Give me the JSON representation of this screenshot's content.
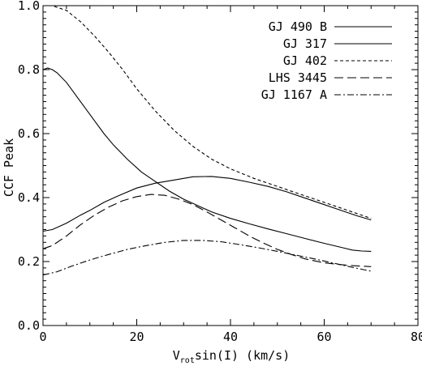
{
  "chart_data": {
    "type": "line",
    "title": "",
    "xlabel_main": "V",
    "xlabel_sub": "rot",
    "xlabel_rest": "sin(I) (km/s)",
    "ylabel": "CCF Peak",
    "xlim": [
      0,
      80
    ],
    "ylim": [
      0.0,
      1.0
    ],
    "xticks": [
      "0",
      "20",
      "40",
      "60",
      "80"
    ],
    "yticks": [
      "0.0",
      "0.2",
      "0.4",
      "0.6",
      "0.8",
      "1.0"
    ],
    "grid": false,
    "legend_position": "top-right",
    "series": [
      {
        "name": "GJ 490 B",
        "dash": "solid",
        "x": [
          0,
          2,
          5,
          8,
          10,
          13,
          16,
          20,
          24,
          28,
          32,
          36,
          40,
          44,
          48,
          52,
          56,
          60,
          64,
          67,
          70
        ],
        "values": [
          0.295,
          0.3,
          0.32,
          0.345,
          0.36,
          0.385,
          0.405,
          0.43,
          0.445,
          0.455,
          0.465,
          0.466,
          0.46,
          0.448,
          0.435,
          0.418,
          0.398,
          0.378,
          0.358,
          0.343,
          0.33
        ]
      },
      {
        "name": "GJ 317",
        "dash": "solid",
        "x": [
          0,
          1,
          2,
          3,
          5,
          7,
          9,
          11,
          13,
          15,
          18,
          21,
          24,
          27,
          30,
          33,
          36,
          40,
          44,
          48,
          52,
          56,
          60,
          64,
          66,
          68,
          70
        ],
        "values": [
          0.8,
          0.805,
          0.8,
          0.79,
          0.76,
          0.72,
          0.68,
          0.64,
          0.6,
          0.565,
          0.52,
          0.48,
          0.45,
          0.42,
          0.395,
          0.375,
          0.355,
          0.335,
          0.318,
          0.302,
          0.287,
          0.272,
          0.257,
          0.243,
          0.236,
          0.233,
          0.232
        ]
      },
      {
        "name": "GJ 402",
        "dash": "short",
        "x": [
          0,
          2,
          5,
          8,
          11,
          14,
          17,
          20,
          24,
          28,
          32,
          36,
          40,
          45,
          50,
          55,
          60,
          65,
          70
        ],
        "values": [
          1.0,
          1.0,
          0.985,
          0.95,
          0.905,
          0.855,
          0.8,
          0.74,
          0.67,
          0.61,
          0.56,
          0.52,
          0.49,
          0.46,
          0.435,
          0.41,
          0.385,
          0.36,
          0.335
        ]
      },
      {
        "name": "LHS 3445",
        "dash": "long",
        "x": [
          0,
          2,
          5,
          8,
          11,
          14,
          17,
          20,
          23,
          26,
          29,
          32,
          35,
          38,
          41,
          44,
          47,
          50,
          53,
          56,
          60,
          65,
          70
        ],
        "values": [
          0.24,
          0.25,
          0.28,
          0.315,
          0.345,
          0.37,
          0.39,
          0.403,
          0.41,
          0.407,
          0.395,
          0.378,
          0.355,
          0.33,
          0.305,
          0.28,
          0.258,
          0.238,
          0.222,
          0.208,
          0.196,
          0.188,
          0.184
        ]
      },
      {
        "name": "GJ 1167 A",
        "dash": "dashdot",
        "x": [
          0,
          3,
          6,
          10,
          14,
          18,
          22,
          26,
          30,
          34,
          38,
          42,
          46,
          50,
          54,
          58,
          62,
          66,
          70
        ],
        "values": [
          0.158,
          0.168,
          0.185,
          0.205,
          0.222,
          0.238,
          0.25,
          0.26,
          0.266,
          0.266,
          0.262,
          0.253,
          0.243,
          0.232,
          0.22,
          0.208,
          0.195,
          0.182,
          0.17
        ]
      }
    ]
  }
}
